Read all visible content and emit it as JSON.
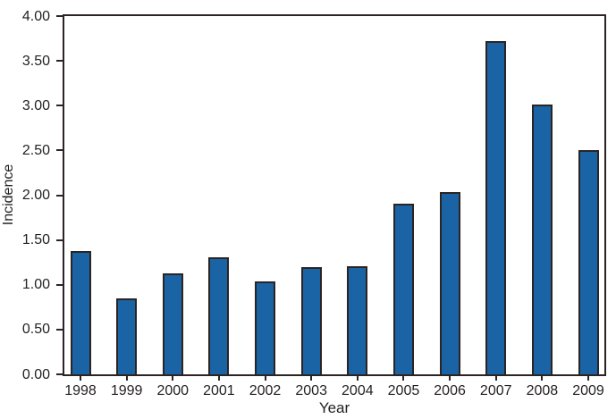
{
  "colors": {
    "background": "#ffffff",
    "bar_fill": "#1a63a4",
    "bar_edge": "#2b2422",
    "axis": "#2b2422",
    "text": "#231f20"
  },
  "chart_data": {
    "type": "bar",
    "categories": [
      "1998",
      "1999",
      "2000",
      "2001",
      "2002",
      "2003",
      "2004",
      "2005",
      "2006",
      "2007",
      "2008",
      "2009"
    ],
    "values": [
      1.38,
      0.85,
      1.13,
      1.31,
      1.04,
      1.2,
      1.21,
      1.91,
      2.03,
      3.72,
      3.01,
      2.5
    ],
    "xlabel": "Year",
    "ylabel": "Incidence",
    "ylim": [
      0,
      4
    ],
    "ytick_step": 0.5,
    "ytick_labels": [
      "0.00",
      "0.50",
      "1.00",
      "1.50",
      "2.00",
      "2.50",
      "3.00",
      "3.50",
      "4.00"
    ],
    "grid": false,
    "legend": "none"
  }
}
